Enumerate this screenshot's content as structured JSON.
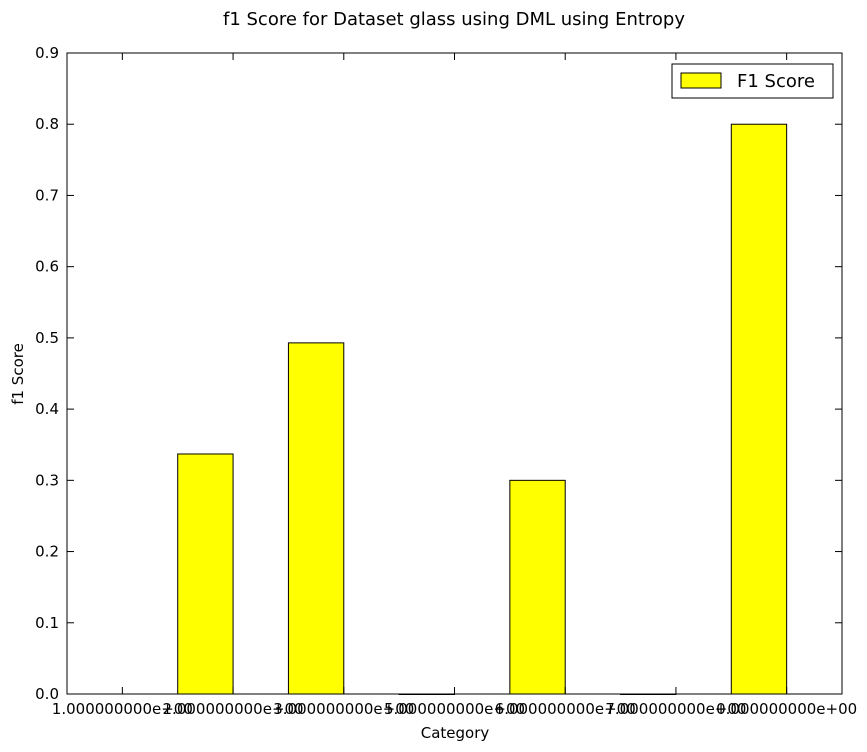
{
  "chart_data": {
    "type": "bar",
    "title": "f1 Score for Dataset glass using DML using Entropy",
    "xlabel": "Category",
    "ylabel": "f1 Score",
    "ylim": [
      0,
      0.9
    ],
    "xlim": [
      0.5,
      7.5
    ],
    "yticks": [
      "0.0",
      "0.1",
      "0.2",
      "0.3",
      "0.4",
      "0.5",
      "0.6",
      "0.7",
      "0.8",
      "0.9"
    ],
    "xticks": [
      {
        "pos": 1,
        "label": "1.000000000e+00"
      },
      {
        "pos": 2,
        "label": "2.000000000e+00"
      },
      {
        "pos": 3,
        "label": "3.000000000e+00"
      },
      {
        "pos": 4,
        "label": "5.000000000e+00"
      },
      {
        "pos": 5,
        "label": "6.000000000e+00"
      },
      {
        "pos": 6,
        "label": "7.000000000e+00"
      },
      {
        "pos": 7,
        "label": "0.000000000e+00"
      }
    ],
    "bar_positions": [
      2,
      3,
      4,
      5,
      6,
      7
    ],
    "series": [
      {
        "name": "F1 Score",
        "values": [
          0.337,
          0.493,
          0.0,
          0.3,
          0.0,
          0.8
        ]
      }
    ],
    "bar_color": "#ffff00",
    "legend_position": "upper right",
    "grid": false
  }
}
